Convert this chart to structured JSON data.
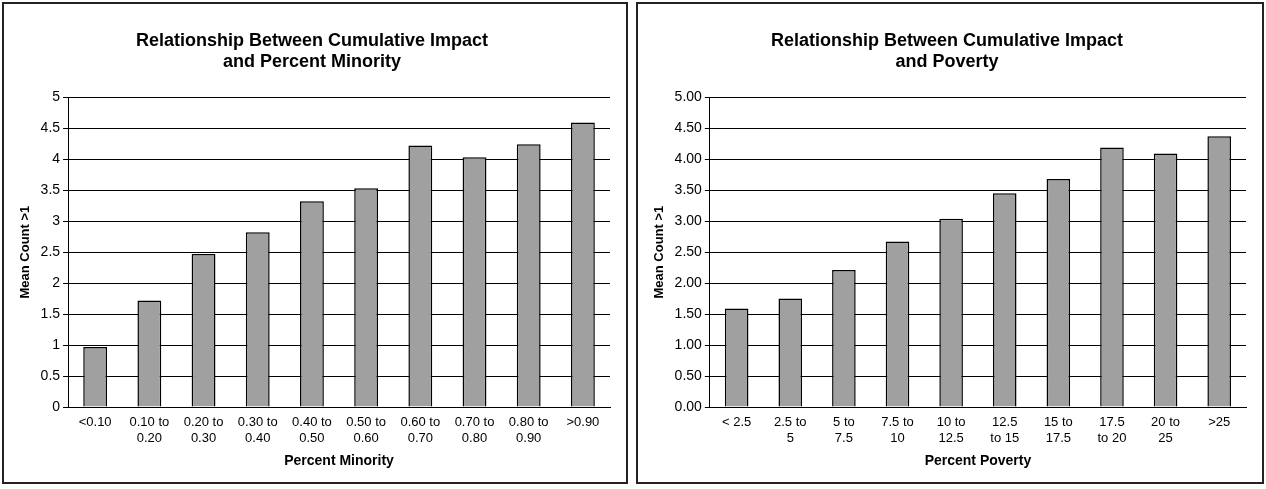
{
  "chart_data": [
    {
      "type": "bar",
      "title": "Relationship Between Cumulative Impact and Percent Minority",
      "xlabel": "Percent Minority",
      "ylabel": "Mean Count >1",
      "categories": [
        "<0.10",
        "0.10 to 0.20",
        "0.20 to 0.30",
        "0.30 to 0.40",
        "0.40 to 0.50",
        "0.50 to 0.60",
        "0.60 to 0.70",
        "0.70 to 0.80",
        "0.80 to 0.90",
        ">0.90"
      ],
      "series": [
        {
          "color": "#a0a0a0",
          "values": [
            0.97,
            1.72,
            2.47,
            2.82,
            3.32,
            3.53,
            4.22,
            4.03,
            4.24,
            4.59
          ]
        }
      ],
      "ylim": [
        0,
        5
      ],
      "yticks": [
        0,
        0.5,
        1,
        1.5,
        2,
        2.5,
        3,
        3.5,
        4,
        4.5,
        5
      ],
      "grid": "y",
      "legend": false
    },
    {
      "type": "bar",
      "title": "Relationship Between Cumulative Impact and Poverty",
      "xlabel": "Percent Poverty",
      "ylabel": "Mean Count >1",
      "categories": [
        "< 2.5",
        "2.5 to 5",
        "5 to 7.5",
        "7.5 to 10",
        "10 to 12.5",
        "12.5 to 15",
        "15 to 17.5",
        "17.5 to 20",
        "20 to 25",
        ">25"
      ],
      "series": [
        {
          "color": "#a0a0a0",
          "values": [
            1.59,
            1.75,
            2.21,
            2.67,
            3.04,
            3.45,
            3.68,
            4.19,
            4.09,
            4.37
          ]
        }
      ],
      "ylim": [
        0,
        5
      ],
      "yticks": [
        {
          "value": 0,
          "label": "0.00"
        },
        {
          "value": 0.5,
          "label": "0.50"
        },
        {
          "value": 1,
          "label": "1.00"
        },
        {
          "value": 1.5,
          "label": "1.50"
        },
        {
          "value": 2,
          "label": "2.00"
        },
        {
          "value": 2.5,
          "label": "2.50"
        },
        {
          "value": 3,
          "label": "3.00"
        },
        {
          "value": 3.5,
          "label": "3.50"
        },
        {
          "value": 4,
          "label": "4.00"
        },
        {
          "value": 4.5,
          "label": "4.50"
        },
        {
          "value": 5,
          "label": "5.00"
        }
      ],
      "grid": "y",
      "legend": false
    }
  ]
}
